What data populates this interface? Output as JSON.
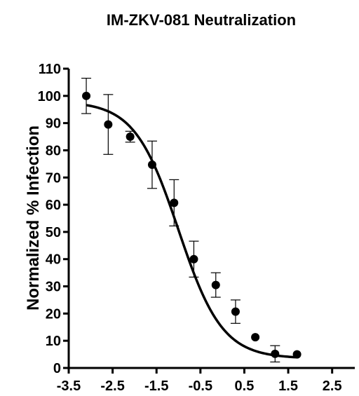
{
  "chart_data": {
    "type": "scatter",
    "title": "IM-ZKV-081 Neutralization",
    "xlabel": "",
    "ylabel": "Normalized % Infection",
    "xlim": [
      -3.5,
      3.0
    ],
    "ylim": [
      0,
      110
    ],
    "xticks": [
      -3.5,
      -2.5,
      -1.5,
      -0.5,
      0.5,
      1.5,
      2.5
    ],
    "xtick_labels": [
      "-3.5",
      "-2.5",
      "-1.5",
      "-0.5",
      "0.5",
      "1.5",
      "2.5"
    ],
    "yticks": [
      0,
      10,
      20,
      30,
      40,
      50,
      60,
      70,
      80,
      90,
      100,
      110
    ],
    "ytick_labels": [
      "0",
      "10",
      "20",
      "30",
      "40",
      "50",
      "60",
      "70",
      "80",
      "90",
      "100",
      "110"
    ],
    "grid": false,
    "legend": "none",
    "series": [
      {
        "points": [
          {
            "x": -3.1,
            "y": 100,
            "err": 6.5
          },
          {
            "x": -2.6,
            "y": 89.5,
            "err": 11
          },
          {
            "x": -2.1,
            "y": 85,
            "err": 2
          },
          {
            "x": -1.6,
            "y": 74.7,
            "err": 8.7
          },
          {
            "x": -1.1,
            "y": 60.7,
            "err": 8.5
          },
          {
            "x": -0.65,
            "y": 40,
            "err": 6.6
          },
          {
            "x": -0.15,
            "y": 30.5,
            "err": 4.5
          },
          {
            "x": 0.3,
            "y": 20.7,
            "err": 4.3
          },
          {
            "x": 0.75,
            "y": 11.3,
            "err": 0
          },
          {
            "x": 1.2,
            "y": 5.2,
            "err": 3
          },
          {
            "x": 1.7,
            "y": 5,
            "err": 0
          }
        ],
        "fit": {
          "model": "four-parameter logistic",
          "top": 98,
          "bottom": 3.5,
          "logEC50": -1.0,
          "hillslope": -0.87
        },
        "color": "#000000"
      }
    ]
  }
}
